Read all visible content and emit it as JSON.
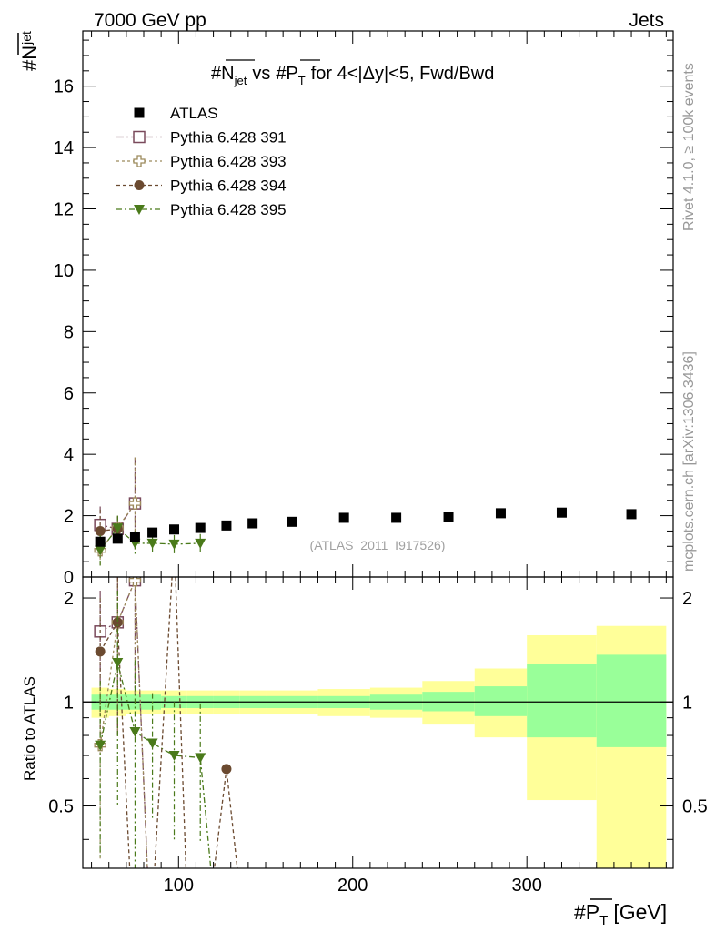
{
  "header": {
    "left": "7000 GeV pp",
    "right": "Jets"
  },
  "side_labels": {
    "rivet": "Rivet 4.1.0, ≥ 100k events",
    "mcplots": "mcplots.cern.ch [arXiv:1306.3436]"
  },
  "watermark": "(ATLAS_2011_I917526)",
  "chart_data": {
    "type": "scatter",
    "title": "#N̅jet vs #P̅T for 4<|Δy|<5, Fwd/Bwd",
    "title_parts": {
      "n_sym": "#N",
      "jet_sub": "jet",
      "vs": "vs",
      "p_sym": "#P",
      "t_sub": "T",
      "rest": "for 4<|Δy|<5, Fwd/Bwd"
    },
    "ylabel_parts": {
      "sym": "#N",
      "sub": "jet"
    },
    "xlabel_parts": {
      "sym": "#P",
      "sub": "T",
      "unit": "[GeV]"
    },
    "ratio_ylabel": "Ratio to ATLAS",
    "xlim": [
      45,
      384
    ],
    "ylim": [
      0,
      17.8
    ],
    "ratio_ylim": [
      0.33,
      2.3
    ],
    "x_ticks": [
      "100",
      "200",
      "300"
    ],
    "y_ticks": [
      "0",
      "2",
      "4",
      "6",
      "8",
      "10",
      "12",
      "14",
      "16"
    ],
    "ratio_ticks": [
      "0.5",
      "1",
      "2"
    ],
    "legend": [
      "ATLAS",
      "Pythia 6.428 391",
      "Pythia 6.428 393",
      "Pythia 6.428 394",
      "Pythia 6.428 395"
    ],
    "atlas": {
      "x": [
        55,
        65,
        75,
        85,
        97.5,
        112.5,
        127.5,
        142.5,
        165,
        195,
        225,
        255,
        285,
        320,
        360
      ],
      "y": [
        1.15,
        1.25,
        1.3,
        1.45,
        1.55,
        1.6,
        1.68,
        1.75,
        1.8,
        1.93,
        1.93,
        1.97,
        2.08,
        2.1,
        2.05
      ]
    },
    "bands": {
      "edges": [
        50,
        60,
        70,
        80,
        90,
        105,
        120,
        135,
        150,
        180,
        210,
        240,
        270,
        300,
        340,
        380
      ],
      "stat_lo": [
        0.95,
        0.95,
        0.95,
        0.95,
        0.96,
        0.96,
        0.96,
        0.96,
        0.96,
        0.96,
        0.95,
        0.94,
        0.91,
        0.79,
        0.74
      ],
      "stat_hi": [
        1.05,
        1.05,
        1.05,
        1.05,
        1.04,
        1.04,
        1.04,
        1.04,
        1.04,
        1.04,
        1.05,
        1.07,
        1.11,
        1.29,
        1.37
      ],
      "tot_lo": [
        0.9,
        0.91,
        0.92,
        0.92,
        0.92,
        0.92,
        0.92,
        0.92,
        0.92,
        0.91,
        0.9,
        0.86,
        0.79,
        0.52,
        0.33
      ],
      "tot_hi": [
        1.1,
        1.09,
        1.08,
        1.08,
        1.08,
        1.08,
        1.08,
        1.08,
        1.08,
        1.09,
        1.1,
        1.15,
        1.25,
        1.56,
        1.66
      ]
    },
    "series": [
      {
        "name": "Pythia 6.428 391",
        "color": "#7a4a5c",
        "marker": "open-square",
        "dash": "8,3,2,3",
        "x": [
          55,
          65,
          75
        ],
        "y": [
          1.7,
          1.57,
          2.4
        ],
        "yerr": [
          0.6,
          0.4,
          1.5
        ],
        "ratio": [
          1.6,
          1.7,
          2.25
        ],
        "ratio_err": [
          0.5,
          0.9,
          1.2
        ]
      },
      {
        "name": "Pythia 6.428 393",
        "color": "#9c8a5c",
        "marker": "open-plus",
        "dash": "3,3",
        "x": [
          55,
          65,
          75
        ],
        "y": [
          0.87,
          1.6,
          2.4
        ],
        "yerr": [
          0.5,
          0.4,
          1.5
        ],
        "ratio": [
          0.75,
          1.7,
          2.25
        ],
        "ratio_err": [
          0.4,
          0.9,
          1.2
        ]
      },
      {
        "name": "Pythia 6.428 394",
        "color": "#6b4a30",
        "marker": "circle",
        "dash": "4,3",
        "x": [
          55,
          65
        ],
        "y": [
          1.5,
          1.57
        ],
        "yerr": [
          0.7,
          0.4
        ],
        "ratio": [
          1.4,
          1.7
        ],
        "ratio_err": [
          0.6,
          0.9
        ]
      },
      {
        "name": "Pythia 6.428 395",
        "color": "#4a7a1a",
        "marker": "triangle-down",
        "dash": "6,3,2,3",
        "x": [
          55,
          65,
          75,
          85,
          97.5,
          112.5
        ],
        "y": [
          0.87,
          1.6,
          1.1,
          1.1,
          1.07,
          1.1
        ],
        "yerr": [
          0.5,
          0.4,
          0.4,
          0.3,
          0.3,
          0.3
        ],
        "ratio": [
          0.75,
          1.3,
          0.82,
          0.76,
          0.7,
          0.69
        ],
        "ratio_err": [
          0.4,
          0.8,
          0.5,
          0.3,
          0.3,
          0.3
        ]
      }
    ]
  }
}
